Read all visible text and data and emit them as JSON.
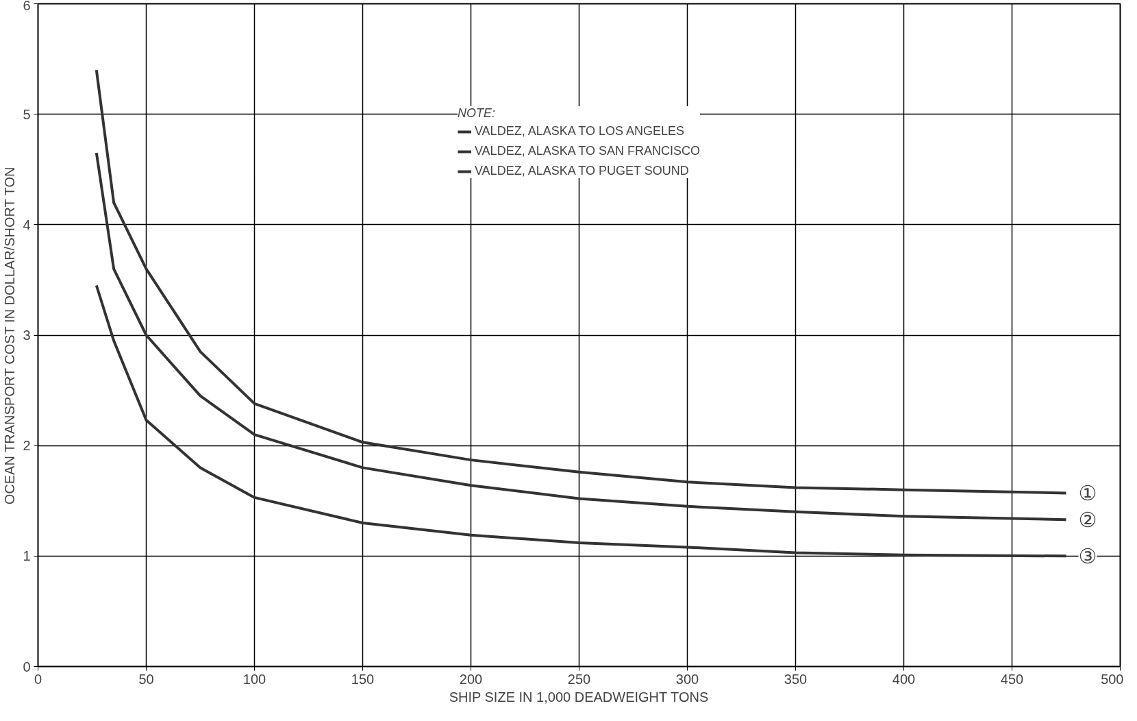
{
  "chart_data": {
    "type": "line",
    "xlabel": "SHIP SIZE IN 1,000 DEADWEIGHT TONS",
    "ylabel": "OCEAN TRANSPORT COST IN DOLLAR/SHORT TON",
    "legend_title": "NOTE:",
    "x": [
      27,
      35,
      50,
      75,
      100,
      150,
      200,
      250,
      300,
      350,
      400,
      475
    ],
    "series": [
      {
        "name": "VALDEZ, ALASKA TO LOS ANGELES",
        "color": "#333333",
        "values": [
          5.4,
          4.2,
          3.6,
          2.85,
          2.38,
          2.03,
          1.87,
          1.76,
          1.67,
          1.62,
          1.6,
          1.57
        ]
      },
      {
        "name": "VALDEZ, ALASKA TO SAN FRANCISCO",
        "color": "#333333",
        "values": [
          4.65,
          3.6,
          3.0,
          2.45,
          2.1,
          1.8,
          1.64,
          1.52,
          1.45,
          1.4,
          1.36,
          1.33
        ]
      },
      {
        "name": "VALDEZ, ALASKA TO PUGET SOUND",
        "color": "#333333",
        "values": [
          3.45,
          2.95,
          2.23,
          1.8,
          1.53,
          1.3,
          1.19,
          1.12,
          1.08,
          1.03,
          1.01,
          1.0
        ]
      }
    ],
    "annotations": [
      "①",
      "②",
      "③"
    ],
    "xlim": [
      0,
      500
    ],
    "ylim": [
      0,
      6
    ],
    "xticks": [
      0,
      50,
      100,
      150,
      200,
      250,
      300,
      350,
      400,
      450,
      500
    ],
    "yticks": [
      0,
      1,
      2,
      3,
      4,
      5,
      6
    ],
    "grid": true,
    "legend": "top",
    "marker": "none",
    "line_style": "solid"
  }
}
